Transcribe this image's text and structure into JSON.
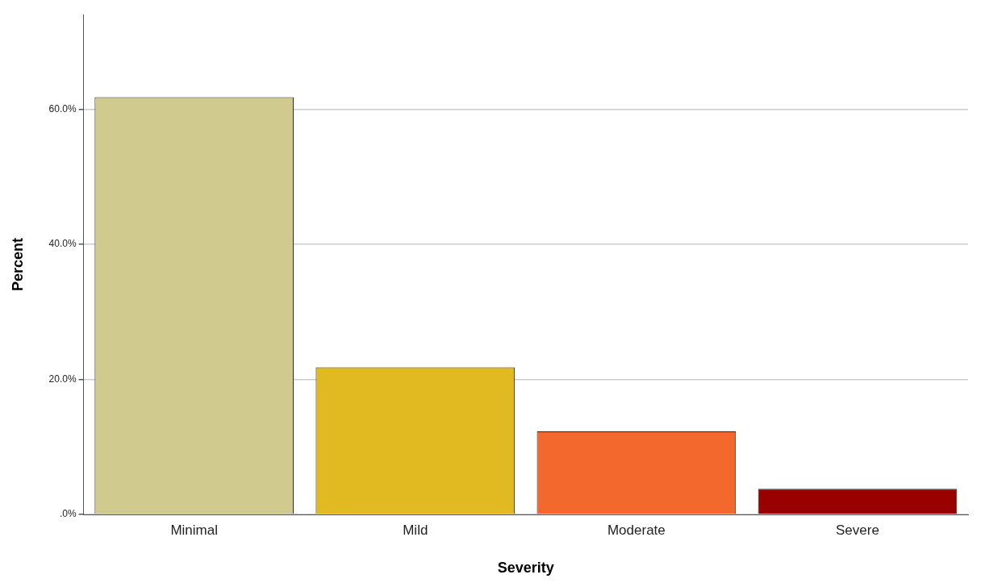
{
  "chart_data": {
    "type": "bar",
    "xlabel": "Severity",
    "ylabel": "Percent",
    "categories": [
      "Minimal",
      "Mild",
      "Moderate",
      "Severe"
    ],
    "values": [
      61.8,
      21.8,
      12.3,
      3.8
    ],
    "colors": [
      "#d0ca8e",
      "#e0ba20",
      "#f3682c",
      "#990000"
    ],
    "ylim": [
      0,
      74
    ],
    "yticks": [
      {
        "value": 0,
        "label": ".0%"
      },
      {
        "value": 20,
        "label": "20.0%"
      },
      {
        "value": 40,
        "label": "40.0%"
      },
      {
        "value": 60,
        "label": "60.0%"
      }
    ],
    "grid": "y"
  }
}
